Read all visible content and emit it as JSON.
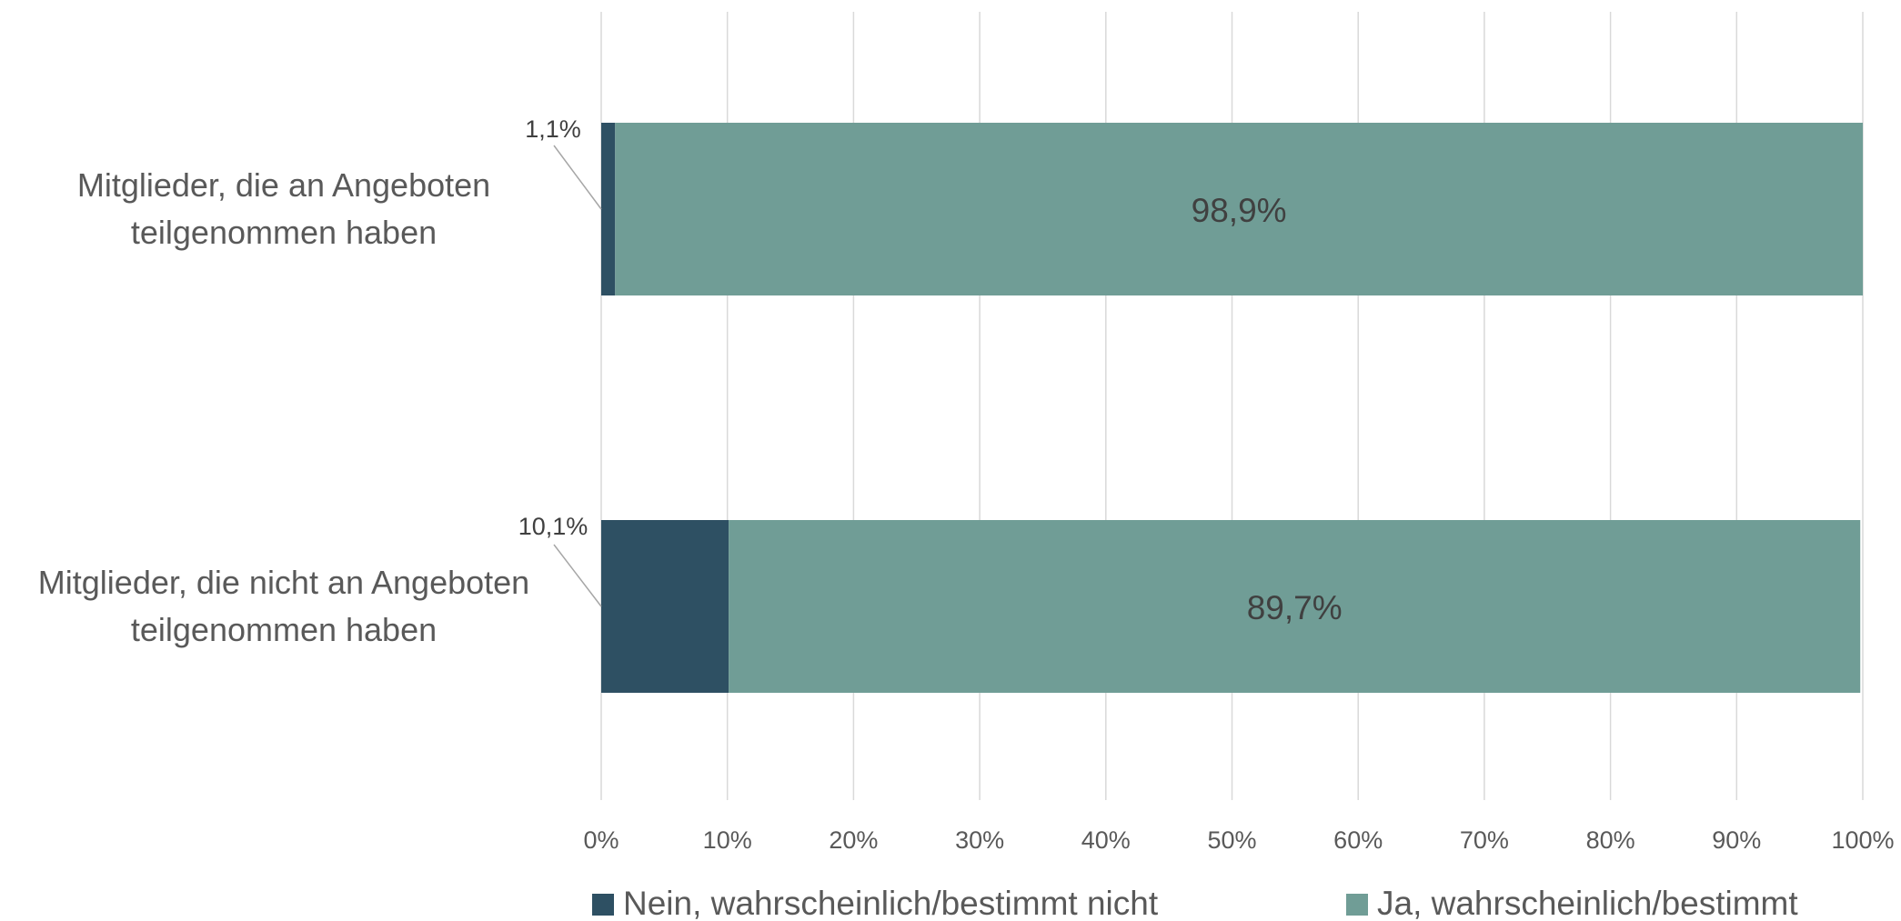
{
  "chart_data": {
    "type": "stacked-barh",
    "categories": [
      "Mitglieder, die an Angeboten teilgenommen haben",
      "Mitglieder, die nicht an Angeboten teilgenommen haben"
    ],
    "series": [
      {
        "name": "Nein, wahrscheinlich/bestimmt nicht",
        "color": "#2e5063",
        "values": [
          1.1,
          10.1
        ],
        "value_labels": [
          "1,1%",
          "10,1%"
        ]
      },
      {
        "name": "Ja, wahrscheinlich/bestimmt",
        "color": "#709d96",
        "values": [
          98.9,
          89.7
        ],
        "value_labels": [
          "98,9%",
          "89,7%"
        ]
      }
    ],
    "xlim": [
      0,
      100
    ],
    "xticks": [
      {
        "value": 0,
        "label": "0%"
      },
      {
        "value": 10,
        "label": "10%"
      },
      {
        "value": 20,
        "label": "20%"
      },
      {
        "value": 30,
        "label": "30%"
      },
      {
        "value": 40,
        "label": "40%"
      },
      {
        "value": 50,
        "label": "50%"
      },
      {
        "value": 60,
        "label": "60%"
      },
      {
        "value": 70,
        "label": "70%"
      },
      {
        "value": 80,
        "label": "80%"
      },
      {
        "value": 90,
        "label": "90%"
      },
      {
        "value": 100,
        "label": "100%"
      }
    ],
    "grid": true,
    "legend": "bottom"
  }
}
